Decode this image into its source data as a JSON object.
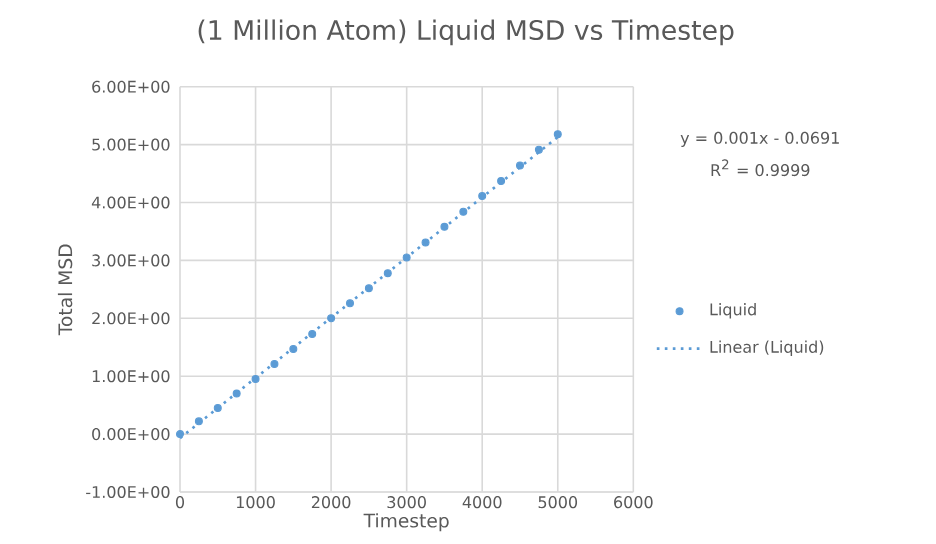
{
  "chart_data": {
    "type": "scatter",
    "title": "(1 Million Atom) Liquid MSD vs Timestep",
    "xlabel": "Timestep",
    "ylabel": "Total MSD",
    "annotations": [
      "y = 0.001x - 0.0691",
      "R$^{2}$ = 0.9999"
    ],
    "series": [
      {
        "name": "Liquid",
        "color": "#5b9bd5",
        "marker": "circle",
        "x": [
          0,
          250,
          500,
          750,
          1000,
          1250,
          1500,
          1750,
          2000,
          2250,
          2500,
          2750,
          3000,
          3250,
          3500,
          3750,
          4000,
          4250,
          4500,
          4750,
          5000
        ],
        "values": [
          0,
          0.22,
          0.45,
          0.7,
          0.95,
          1.21,
          1.47,
          1.73,
          2.0,
          2.26,
          2.52,
          2.78,
          3.05,
          3.31,
          3.58,
          3.84,
          4.11,
          4.37,
          4.64,
          4.91,
          5.18
        ]
      },
      {
        "name": "Linear (Liquid)",
        "type": "line",
        "line_style": "dotted",
        "marker": "none",
        "color": "#5b9bd5",
        "x": [
          0,
          5000
        ],
        "values": [
          -0.07,
          5.13
        ]
      }
    ],
    "xlim": [
      0,
      6000
    ],
    "xticks": [
      0,
      1000,
      2000,
      3000,
      4000,
      5000,
      6000
    ],
    "ylim": [
      -1,
      6
    ],
    "yticks": [
      {
        "value": -1,
        "label": "-1.00E+00"
      },
      {
        "value": 0,
        "label": "0.00E+00"
      },
      {
        "value": 1,
        "label": "1.00E+00"
      },
      {
        "value": 2,
        "label": "2.00E+00"
      },
      {
        "value": 3,
        "label": "3.00E+00"
      },
      {
        "value": 4,
        "label": "4.00E+00"
      },
      {
        "value": 5,
        "label": "5.00E+00"
      },
      {
        "value": 6,
        "label": "6.00E+00"
      }
    ],
    "grid": true,
    "legend": "right"
  }
}
